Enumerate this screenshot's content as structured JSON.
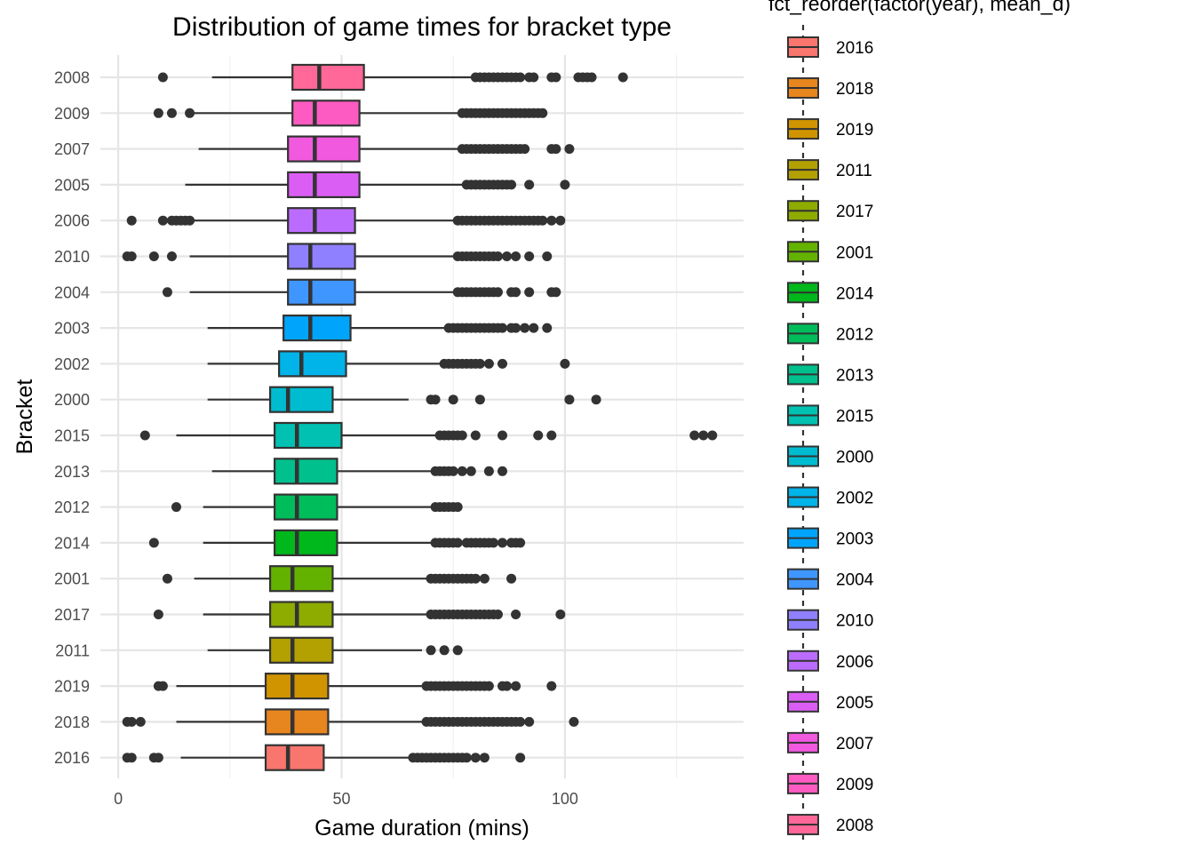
{
  "chart_data": {
    "type": "boxplot",
    "title": "Distribution of game times for bracket type",
    "xlabel": "Game duration (mins)",
    "ylabel": "Bracket",
    "xlim": [
      -4,
      140
    ],
    "x_ticks": [
      0,
      50,
      100
    ],
    "x_tick_labels": [
      "0",
      "50",
      "100"
    ],
    "grid": true,
    "legend": {
      "title": "fct_reorder(factor(year), mean_d)",
      "placement": "right",
      "items": [
        "2016",
        "2018",
        "2019",
        "2011",
        "2017",
        "2001",
        "2014",
        "2012",
        "2013",
        "2015",
        "2000",
        "2002",
        "2003",
        "2004",
        "2010",
        "2006",
        "2005",
        "2007",
        "2009",
        "2008"
      ]
    },
    "series": [
      {
        "label": "2016",
        "color": "#F8766D",
        "whisker_low": 14,
        "q1": 33,
        "median": 38,
        "q3": 46,
        "whisker_high": 65,
        "outliers": [
          2,
          3,
          8,
          9,
          66,
          67,
          68,
          69,
          70,
          71,
          72,
          73,
          74,
          75,
          76,
          77,
          78,
          80,
          82,
          90
        ]
      },
      {
        "label": "2018",
        "color": "#E7851E",
        "whisker_low": 13,
        "q1": 33,
        "median": 39,
        "q3": 47,
        "whisker_high": 68,
        "outliers": [
          2,
          3,
          5,
          69,
          70,
          71,
          72,
          73,
          74,
          75,
          76,
          77,
          78,
          79,
          80,
          81,
          82,
          83,
          84,
          85,
          86,
          87,
          88,
          89,
          90,
          92,
          102
        ]
      },
      {
        "label": "2019",
        "color": "#D09400",
        "whisker_low": 13,
        "q1": 33,
        "median": 39,
        "q3": 47,
        "whisker_high": 68,
        "outliers": [
          9,
          10,
          69,
          70,
          71,
          72,
          73,
          74,
          75,
          76,
          77,
          78,
          79,
          80,
          81,
          82,
          83,
          86,
          87,
          89,
          97
        ]
      },
      {
        "label": "2011",
        "color": "#B2A100",
        "whisker_low": 20,
        "q1": 34,
        "median": 39,
        "q3": 48,
        "whisker_high": 68,
        "outliers": [
          70,
          73,
          76
        ]
      },
      {
        "label": "2017",
        "color": "#8EAB00",
        "whisker_low": 19,
        "q1": 34,
        "median": 40,
        "q3": 48,
        "whisker_high": 69,
        "outliers": [
          9,
          70,
          71,
          72,
          73,
          74,
          75,
          76,
          77,
          78,
          79,
          80,
          81,
          82,
          83,
          84,
          85,
          89,
          99
        ]
      },
      {
        "label": "2001",
        "color": "#64B200",
        "whisker_low": 17,
        "q1": 34,
        "median": 39,
        "q3": 48,
        "whisker_high": 69,
        "outliers": [
          11,
          70,
          71,
          72,
          73,
          74,
          75,
          76,
          77,
          78,
          79,
          80,
          82,
          88
        ]
      },
      {
        "label": "2014",
        "color": "#00B81B",
        "whisker_low": 19,
        "q1": 35,
        "median": 40,
        "q3": 49,
        "whisker_high": 70,
        "outliers": [
          8,
          71,
          72,
          73,
          74,
          75,
          76,
          78,
          79,
          80,
          81,
          82,
          83,
          84,
          86,
          88,
          89,
          90
        ]
      },
      {
        "label": "2012",
        "color": "#00BD5C",
        "whisker_low": 19,
        "q1": 35,
        "median": 40,
        "q3": 49,
        "whisker_high": 70,
        "outliers": [
          13,
          71,
          72,
          73,
          74,
          75,
          76
        ]
      },
      {
        "label": "2013",
        "color": "#00C08E",
        "whisker_low": 21,
        "q1": 35,
        "median": 40,
        "q3": 49,
        "whisker_high": 70,
        "outliers": [
          71,
          72,
          73,
          74,
          75,
          77,
          79,
          83,
          86
        ]
      },
      {
        "label": "2015",
        "color": "#00C1B2",
        "whisker_low": 13,
        "q1": 35,
        "median": 40,
        "q3": 50,
        "whisker_high": 72,
        "outliers": [
          6,
          72,
          73,
          74,
          75,
          76,
          77,
          80,
          86,
          94,
          97,
          129,
          131,
          133
        ]
      },
      {
        "label": "2000",
        "color": "#00BCD1",
        "whisker_low": 20,
        "q1": 34,
        "median": 38,
        "q3": 48,
        "whisker_high": 65,
        "outliers": [
          70,
          71,
          75,
          81,
          101,
          107
        ]
      },
      {
        "label": "2002",
        "color": "#00B3E9",
        "whisker_low": 20,
        "q1": 36,
        "median": 41,
        "q3": 51,
        "whisker_high": 72,
        "outliers": [
          73,
          74,
          75,
          76,
          77,
          78,
          79,
          80,
          81,
          83,
          86,
          100
        ]
      },
      {
        "label": "2003",
        "color": "#00A5FB",
        "whisker_low": 20,
        "q1": 37,
        "median": 43,
        "q3": 52,
        "whisker_high": 73,
        "outliers": [
          74,
          75,
          76,
          77,
          78,
          79,
          80,
          81,
          82,
          83,
          84,
          85,
          86,
          88,
          89,
          91,
          93,
          96
        ]
      },
      {
        "label": "2004",
        "color": "#3F96FF",
        "whisker_low": 16,
        "q1": 38,
        "median": 43,
        "q3": 53,
        "whisker_high": 75,
        "outliers": [
          11,
          76,
          77,
          78,
          79,
          80,
          81,
          82,
          83,
          84,
          85,
          88,
          89,
          92,
          97,
          98
        ]
      },
      {
        "label": "2010",
        "color": "#8F80FF",
        "whisker_low": 16,
        "q1": 38,
        "median": 43,
        "q3": 53,
        "whisker_high": 75,
        "outliers": [
          2,
          3,
          8,
          12,
          76,
          77,
          78,
          79,
          80,
          81,
          82,
          83,
          84,
          85,
          87,
          89,
          92,
          96
        ]
      },
      {
        "label": "2006",
        "color": "#BB6CFF",
        "whisker_low": 16,
        "q1": 38,
        "median": 44,
        "q3": 53,
        "whisker_high": 75,
        "outliers": [
          3,
          10,
          12,
          13,
          14,
          15,
          16,
          76,
          77,
          78,
          79,
          80,
          81,
          82,
          83,
          84,
          85,
          86,
          87,
          88,
          89,
          90,
          91,
          92,
          93,
          94,
          95,
          97,
          99
        ]
      },
      {
        "label": "2005",
        "color": "#DB5EF4",
        "whisker_low": 15,
        "q1": 38,
        "median": 44,
        "q3": 54,
        "whisker_high": 77,
        "outliers": [
          78,
          79,
          80,
          81,
          82,
          83,
          84,
          85,
          86,
          87,
          88,
          92,
          100
        ]
      },
      {
        "label": "2007",
        "color": "#F159DF",
        "whisker_low": 18,
        "q1": 38,
        "median": 44,
        "q3": 54,
        "whisker_high": 76,
        "outliers": [
          77,
          78,
          79,
          80,
          81,
          82,
          83,
          84,
          85,
          86,
          87,
          88,
          89,
          90,
          91,
          97,
          98,
          101
        ]
      },
      {
        "label": "2009",
        "color": "#FD5BC1",
        "whisker_low": 16,
        "q1": 39,
        "median": 44,
        "q3": 54,
        "whisker_high": 76,
        "outliers": [
          9,
          12,
          16,
          77,
          78,
          79,
          80,
          81,
          82,
          83,
          84,
          85,
          86,
          87,
          88,
          89,
          90,
          91,
          92,
          93,
          94,
          95
        ]
      },
      {
        "label": "2008",
        "color": "#FF6899",
        "whisker_low": 21,
        "q1": 39,
        "median": 45,
        "q3": 55,
        "whisker_high": 79,
        "outliers": [
          10,
          80,
          81,
          82,
          83,
          84,
          85,
          86,
          87,
          88,
          89,
          90,
          92,
          93,
          97,
          98,
          103,
          104,
          105,
          106,
          113
        ]
      }
    ]
  }
}
